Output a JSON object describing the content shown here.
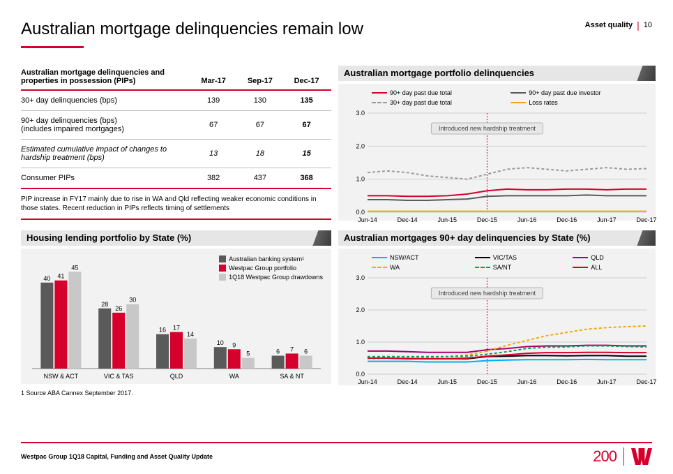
{
  "header": {
    "title": "Australian mortgage delinquencies remain low",
    "section": "Asset quality",
    "page_num": "10"
  },
  "colors": {
    "brand_red": "#d5002b",
    "dark_grey": "#5a5a5a",
    "mid_grey": "#9a9a9a",
    "light_grey": "#c8c8c8",
    "panel_bg": "#f2f2f2",
    "yellow": "#f2a900",
    "cyan": "#00b0f0",
    "black": "#000000",
    "magenta": "#a6006d",
    "green": "#00a651"
  },
  "table": {
    "header_label": "Australian mortgage delinquencies and properties in possession (PIPs)",
    "cols": [
      "Mar-17",
      "Sep-17",
      "Dec-17"
    ],
    "rows": [
      {
        "label": "30+ day delinquencies (bps)",
        "vals": [
          "139",
          "130",
          "135"
        ],
        "italic": false
      },
      {
        "label": "90+ day delinquencies (bps)\n(includes impaired mortgages)",
        "vals": [
          "67",
          "67",
          "67"
        ],
        "italic": false
      },
      {
        "label": "Estimated cumulative impact of changes to hardship treatment (bps)",
        "vals": [
          "13",
          "18",
          "15"
        ],
        "italic": true
      },
      {
        "label": "Consumer PIPs",
        "vals": [
          "382",
          "437",
          "368"
        ],
        "italic": false
      }
    ],
    "note": "PIP increase in FY17 mainly due to rise in WA and Qld reflecting weaker economic conditions in those states. Recent reduction in PIPs reflects timing of settlements"
  },
  "chart_portfolio": {
    "title": "Australian mortgage portfolio delinquencies",
    "ylim": [
      0,
      3.0
    ],
    "ytick_step": 1.0,
    "x_labels": [
      "Jun-14",
      "Dec-14",
      "Jun-15",
      "Dec-15",
      "Jun-16",
      "Dec-16",
      "Jun-17",
      "Dec-17"
    ],
    "callout": "Introduced new hardship treatment",
    "callout_x_index": 3,
    "series": [
      {
        "name": "90+ day past due total",
        "color": "#d5002b",
        "dash": "",
        "y": [
          0.5,
          0.5,
          0.48,
          0.48,
          0.5,
          0.55,
          0.65,
          0.7,
          0.68,
          0.68,
          0.7,
          0.7,
          0.68,
          0.7,
          0.7
        ]
      },
      {
        "name": "90+ day past due investor",
        "color": "#5a5a5a",
        "dash": "",
        "y": [
          0.38,
          0.38,
          0.36,
          0.36,
          0.38,
          0.4,
          0.48,
          0.5,
          0.5,
          0.5,
          0.5,
          0.52,
          0.5,
          0.5,
          0.5
        ]
      },
      {
        "name": "30+ day past due total",
        "color": "#9a9a9a",
        "dash": "4 3",
        "y": [
          1.2,
          1.25,
          1.2,
          1.1,
          1.05,
          1.0,
          1.15,
          1.3,
          1.35,
          1.3,
          1.25,
          1.3,
          1.35,
          1.3,
          1.32
        ]
      },
      {
        "name": "Loss rates",
        "color": "#f2a900",
        "dash": "",
        "y": [
          0.03,
          0.03,
          0.03,
          0.03,
          0.03,
          0.03,
          0.03,
          0.03,
          0.03,
          0.03,
          0.03,
          0.03,
          0.03,
          0.03,
          0.03
        ]
      }
    ]
  },
  "chart_state_bar": {
    "title": "Housing lending portfolio by State (%)",
    "legend": [
      "Australian banking system¹",
      "Westpac Group portfolio",
      "1Q18 Westpac Group drawdowns"
    ],
    "legend_colors": [
      "#5a5a5a",
      "#d5002b",
      "#c8c8c8"
    ],
    "categories": [
      "NSW & ACT",
      "VIC & TAS",
      "QLD",
      "WA",
      "SA & NT"
    ],
    "ylim": [
      0,
      50
    ],
    "data": [
      [
        40,
        41,
        45
      ],
      [
        28,
        26,
        30
      ],
      [
        16,
        17,
        14
      ],
      [
        10,
        9,
        5
      ],
      [
        6,
        7,
        6
      ]
    ]
  },
  "chart_state_line": {
    "title": "Australian mortgages 90+ day delinquencies by State (%)",
    "ylim": [
      0,
      3.0
    ],
    "ytick_step": 1.0,
    "x_labels": [
      "Jun-14",
      "Dec-14",
      "Jun-15",
      "Dec-15",
      "Jun-16",
      "Dec-16",
      "Jun-17",
      "Dec-17"
    ],
    "callout": "Introduced new hardship treatment",
    "callout_x_index": 3,
    "series": [
      {
        "name": "NSW/ACT",
        "color": "#00b0f0",
        "dash": "",
        "y": [
          0.4,
          0.4,
          0.4,
          0.38,
          0.38,
          0.38,
          0.42,
          0.44,
          0.45,
          0.45,
          0.45,
          0.46,
          0.45,
          0.45,
          0.45
        ]
      },
      {
        "name": "VIC/TAS",
        "color": "#000000",
        "dash": "",
        "y": [
          0.5,
          0.5,
          0.48,
          0.48,
          0.48,
          0.48,
          0.55,
          0.56,
          0.58,
          0.58,
          0.57,
          0.58,
          0.58,
          0.56,
          0.56
        ]
      },
      {
        "name": "QLD",
        "color": "#a6006d",
        "dash": "",
        "y": [
          0.72,
          0.72,
          0.7,
          0.68,
          0.68,
          0.68,
          0.76,
          0.8,
          0.86,
          0.88,
          0.88,
          0.9,
          0.9,
          0.88,
          0.88
        ]
      },
      {
        "name": "WA",
        "color": "#f2a900",
        "dash": "4 3",
        "y": [
          0.48,
          0.5,
          0.5,
          0.52,
          0.55,
          0.6,
          0.72,
          0.9,
          1.05,
          1.2,
          1.3,
          1.4,
          1.45,
          1.48,
          1.5
        ]
      },
      {
        "name": "SA/NT",
        "color": "#00a651",
        "dash": "4 3",
        "y": [
          0.55,
          0.55,
          0.55,
          0.55,
          0.55,
          0.56,
          0.62,
          0.7,
          0.8,
          0.84,
          0.85,
          0.88,
          0.88,
          0.86,
          0.85
        ]
      },
      {
        "name": "ALL",
        "color": "#d5002b",
        "dash": "",
        "y": [
          0.5,
          0.5,
          0.49,
          0.48,
          0.48,
          0.5,
          0.56,
          0.6,
          0.65,
          0.67,
          0.67,
          0.68,
          0.68,
          0.67,
          0.67
        ]
      }
    ]
  },
  "footnote": "1 Source ABA Cannex September 2017.",
  "footer": {
    "text": "Westpac Group 1Q18 Capital, Funding and Asset Quality Update",
    "logo_num": "200"
  }
}
